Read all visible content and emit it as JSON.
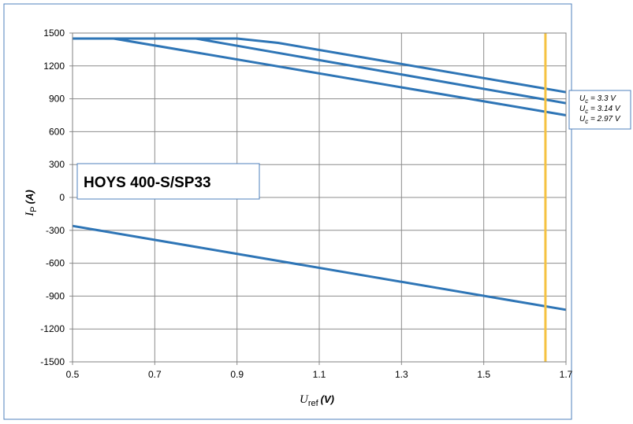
{
  "chart_data": {
    "type": "line",
    "title": "",
    "annotation": "HOYS 400-S/SP33",
    "xlabel": {
      "symbol": "U",
      "subscript": "ref",
      "unit": "(V)"
    },
    "ylabel": {
      "symbol": "I",
      "subscript": "P",
      "unit": "(A)"
    },
    "xlim": [
      0.5,
      1.7
    ],
    "ylim": [
      -1500,
      1500
    ],
    "x_ticks": [
      "0.5",
      "0.7",
      "0.9",
      "1.1",
      "1.3",
      "1.5",
      "1.7"
    ],
    "y_ticks": [
      "1500",
      "1200",
      "900",
      "600",
      "300",
      "0",
      "-300",
      "-600",
      "-900",
      "-1200",
      "-1500"
    ],
    "grid": true,
    "legend_position": "right",
    "series": [
      {
        "name": "Uc = 3.3 V",
        "label_symbol": "U",
        "label_sub": "c",
        "label_rest": " = 3.3 V",
        "color": "#2E75B6",
        "x": [
          0.5,
          0.9,
          1.0,
          1.7
        ],
        "y": [
          1450,
          1450,
          1410,
          960
        ]
      },
      {
        "name": "Uc = 3.14 V",
        "label_symbol": "U",
        "label_sub": "c",
        "label_rest": " = 3.14 V",
        "color": "#2E75B6",
        "x": [
          0.5,
          0.8,
          1.7
        ],
        "y": [
          1450,
          1450,
          860
        ]
      },
      {
        "name": "Uc = 2.97 V",
        "label_symbol": "U",
        "label_sub": "c",
        "label_rest": " = 2.97 V",
        "color": "#2E75B6",
        "x": [
          0.5,
          0.6,
          1.7
        ],
        "y": [
          1450,
          1450,
          750
        ]
      },
      {
        "name": "",
        "color": "#2E75B6",
        "x": [
          0.5,
          1.7
        ],
        "y": [
          -260,
          -1025
        ]
      }
    ],
    "reference_line": {
      "x": 1.65,
      "color": "#F5C242"
    }
  }
}
